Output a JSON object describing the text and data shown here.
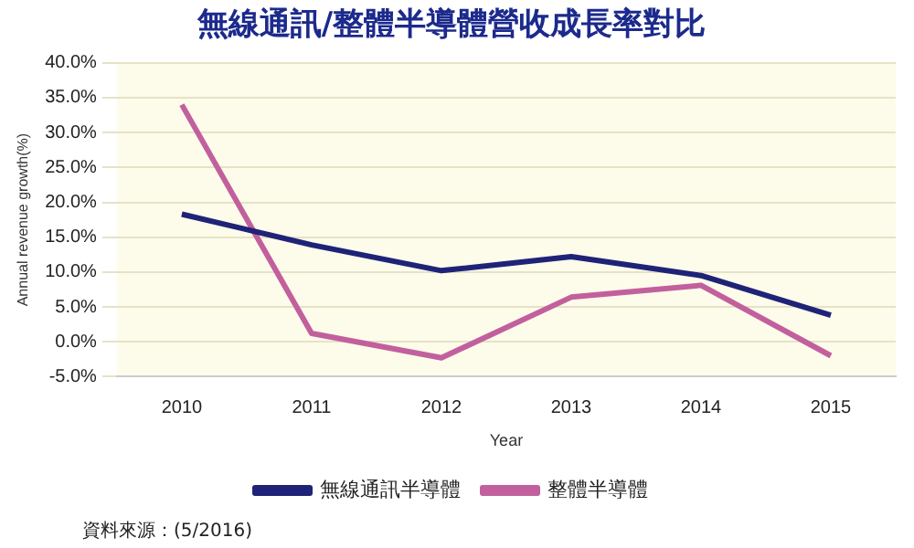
{
  "chart_data": {
    "type": "line",
    "title": "無線通訊/整體半導體營收成長率對比",
    "xlabel": "Year",
    "ylabel": "Annual revenue growth(%)",
    "categories": [
      "2010",
      "2011",
      "2012",
      "2013",
      "2014",
      "2015"
    ],
    "series": [
      {
        "name": "無線通訊半導體",
        "color": "#1f2378",
        "values": [
          18.3,
          13.9,
          10.2,
          12.2,
          9.5,
          3.8
        ]
      },
      {
        "name": "整體半導體",
        "color": "#c2609e",
        "values": [
          34.0,
          1.2,
          -2.3,
          6.4,
          8.1,
          -2.0
        ]
      }
    ],
    "ylim": [
      -5,
      40
    ],
    "yticks": [
      {
        "value": -5,
        "label": "-5.0%"
      },
      {
        "value": 0,
        "label": "0.0%"
      },
      {
        "value": 5,
        "label": "5.0%"
      },
      {
        "value": 10,
        "label": "10.0%"
      },
      {
        "value": 15,
        "label": "15.0%"
      },
      {
        "value": 20,
        "label": "20.0%"
      },
      {
        "value": 25,
        "label": "25.0%"
      },
      {
        "value": 30,
        "label": "30.0%"
      },
      {
        "value": 35,
        "label": "35.0%"
      },
      {
        "value": 40,
        "label": "40.0%"
      }
    ],
    "grid": "y",
    "legend": "bottom",
    "marker": "none",
    "line_style": "solid",
    "annotations": [
      "資料來源：(5/2016)"
    ]
  }
}
